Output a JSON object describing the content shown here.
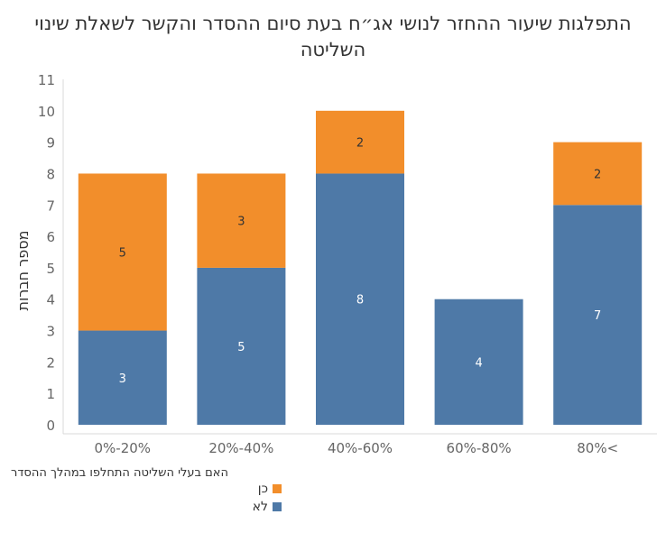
{
  "chart_data": {
    "type": "bar",
    "stacked": true,
    "title": "התפלגות שיעור ההחזר לנושי אג\"ח בעת סיום ההסדר והקשר לשאלת שינוי השליטה",
    "title_line1": "התפלגות שיעור ההחזר לנושי אג״ח בעת סיום ההסדר והקשר לשאלת שינוי",
    "title_line2": "השליטה",
    "xlabel": "",
    "ylabel": "מספר חברות",
    "ylim": [
      0,
      11
    ],
    "yticks": [
      0,
      1,
      2,
      3,
      4,
      5,
      6,
      7,
      8,
      9,
      10,
      11
    ],
    "grid": false,
    "categories": [
      "0%-20%",
      "20%-40%",
      "40%-60%",
      "60%-80%",
      "80%<"
    ],
    "series": [
      {
        "name": "לא",
        "color": "#4e79a7",
        "values": [
          3,
          5,
          8,
          4,
          7
        ]
      },
      {
        "name": "כן",
        "color": "#f28e2b",
        "values": [
          5,
          3,
          2,
          0,
          2
        ]
      }
    ],
    "legend": {
      "title": "האם בעלי השליטה התחלפו במהלך ההסדר",
      "position": "bottom-left",
      "items": [
        {
          "label": "כן",
          "color": "#f28e2b"
        },
        {
          "label": "לא",
          "color": "#4e79a7"
        }
      ]
    }
  }
}
